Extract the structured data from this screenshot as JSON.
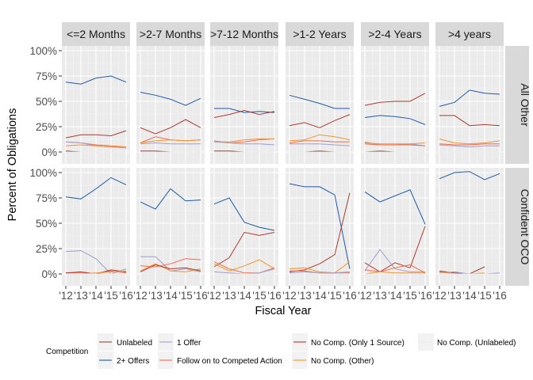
{
  "chart_data": {
    "type": "line",
    "xlabel": "Fiscal Year",
    "ylabel": "Percent of Obligations",
    "x": [
      "'12",
      "'13",
      "'14",
      "'15",
      "'16"
    ],
    "x_tick_labels": [
      "'12",
      "'13",
      "'14",
      "'15",
      "'16"
    ],
    "y_tick_labels": [
      "0%",
      "25%",
      "50%",
      "75%",
      "100%"
    ],
    "ylim": [
      0,
      1
    ],
    "grid": true,
    "legend_position": "bottom",
    "legend_title": "Competition",
    "columns": [
      "<=2 Months",
      ">2-7 Months",
      ">7-12 Months",
      ">1-2 Years",
      ">2-4 Years",
      ">4 years"
    ],
    "rows": [
      "All Other",
      "Confident OCO"
    ],
    "series_names": [
      "Unlabeled",
      "2+ Offers",
      "1 Offer",
      "Follow on to Competed Action",
      "No Comp. (Only 1 Source)",
      "No Comp. (Other)",
      "No Comp. (Unlabeled)"
    ],
    "colors": {
      "Unlabeled": "#8c4a3a",
      "2+ Offers": "#1f5aa6",
      "1 Offer": "#9f9fce",
      "Follow on to Competed Action": "#f26b4a",
      "No Comp. (Only 1 Source)": "#b03a2e",
      "No Comp. (Other)": "#f4932d",
      "No Comp. (Unlabeled)": "#f2ecec"
    },
    "panels": [
      {
        "row": "All Other",
        "col": "<=2 Months",
        "series": [
          {
            "name": "2+ Offers",
            "values": [
              0.69,
              0.67,
              0.73,
              0.75,
              0.69
            ]
          },
          {
            "name": "No Comp. (Only 1 Source)",
            "values": [
              0.14,
              0.17,
              0.17,
              0.16,
              0.21
            ]
          },
          {
            "name": "Follow on to Competed Action",
            "values": [
              0.1,
              0.09,
              0.07,
              0.06,
              0.05
            ]
          },
          {
            "name": "1 Offer",
            "values": [
              0.1,
              0.09,
              0.06,
              0.05,
              0.04
            ]
          },
          {
            "name": "No Comp. (Other)",
            "values": [
              0.06,
              0.07,
              0.06,
              0.05,
              0.05
            ]
          },
          {
            "name": "Unlabeled",
            "values": [
              0.01,
              0.0,
              0.0,
              0.0,
              0.0
            ]
          },
          {
            "name": "No Comp. (Unlabeled)",
            "values": [
              0.0,
              0.0,
              0.0,
              0.0,
              0.0
            ]
          }
        ]
      },
      {
        "row": "All Other",
        "col": ">2-7 Months",
        "series": [
          {
            "name": "2+ Offers",
            "values": [
              0.59,
              0.56,
              0.52,
              0.46,
              0.53
            ]
          },
          {
            "name": "No Comp. (Only 1 Source)",
            "values": [
              0.24,
              0.18,
              0.24,
              0.32,
              0.24
            ]
          },
          {
            "name": "Follow on to Competed Action",
            "values": [
              0.09,
              0.15,
              0.12,
              0.11,
              0.12
            ]
          },
          {
            "name": "No Comp. (Other)",
            "values": [
              0.09,
              0.11,
              0.12,
              0.11,
              0.12
            ]
          },
          {
            "name": "1 Offer",
            "values": [
              0.08,
              0.09,
              0.08,
              0.08,
              0.08
            ]
          },
          {
            "name": "Unlabeled",
            "values": [
              0.01,
              0.01,
              0.0,
              0.0,
              0.0
            ]
          },
          {
            "name": "No Comp. (Unlabeled)",
            "values": [
              0.0,
              0.0,
              0.0,
              0.0,
              0.0
            ]
          }
        ]
      },
      {
        "row": "All Other",
        "col": ">7-12 Months",
        "series": [
          {
            "name": "2+ Offers",
            "values": [
              0.43,
              0.43,
              0.39,
              0.4,
              0.39
            ]
          },
          {
            "name": "No Comp. (Only 1 Source)",
            "values": [
              0.34,
              0.37,
              0.41,
              0.37,
              0.4
            ]
          },
          {
            "name": "Follow on to Competed Action",
            "values": [
              0.11,
              0.09,
              0.1,
              0.12,
              0.13
            ]
          },
          {
            "name": "No Comp. (Other)",
            "values": [
              0.1,
              0.1,
              0.12,
              0.13,
              0.13
            ]
          },
          {
            "name": "1 Offer",
            "values": [
              0.1,
              0.09,
              0.08,
              0.08,
              0.07
            ]
          },
          {
            "name": "Unlabeled",
            "values": [
              0.01,
              0.01,
              0.0,
              0.0,
              0.0
            ]
          },
          {
            "name": "No Comp. (Unlabeled)",
            "values": [
              0.0,
              0.0,
              0.0,
              0.0,
              0.0
            ]
          }
        ]
      },
      {
        "row": "All Other",
        "col": ">1-2 Years",
        "series": [
          {
            "name": "2+ Offers",
            "values": [
              0.56,
              0.52,
              0.48,
              0.43,
              0.43
            ]
          },
          {
            "name": "No Comp. (Only 1 Source)",
            "values": [
              0.26,
              0.29,
              0.24,
              0.31,
              0.37
            ]
          },
          {
            "name": "No Comp. (Other)",
            "values": [
              0.11,
              0.12,
              0.17,
              0.15,
              0.12
            ]
          },
          {
            "name": "Follow on to Competed Action",
            "values": [
              0.09,
              0.11,
              0.11,
              0.1,
              0.1
            ]
          },
          {
            "name": "1 Offer",
            "values": [
              0.08,
              0.08,
              0.08,
              0.07,
              0.06
            ]
          },
          {
            "name": "Unlabeled",
            "values": [
              0.0,
              0.0,
              0.01,
              0.0,
              0.0
            ]
          },
          {
            "name": "No Comp. (Unlabeled)",
            "values": [
              0.0,
              0.0,
              0.0,
              0.0,
              0.0
            ]
          }
        ]
      },
      {
        "row": "All Other",
        "col": ">2-4 Years",
        "series": [
          {
            "name": "No Comp. (Only 1 Source)",
            "values": [
              0.46,
              0.49,
              0.5,
              0.5,
              0.58
            ]
          },
          {
            "name": "2+ Offers",
            "values": [
              0.34,
              0.36,
              0.35,
              0.33,
              0.27
            ]
          },
          {
            "name": "1 Offer",
            "values": [
              0.1,
              0.07,
              0.07,
              0.08,
              0.06
            ]
          },
          {
            "name": "Follow on to Competed Action",
            "values": [
              0.08,
              0.07,
              0.07,
              0.07,
              0.06
            ]
          },
          {
            "name": "No Comp. (Other)",
            "values": [
              0.09,
              0.08,
              0.08,
              0.08,
              0.09
            ]
          },
          {
            "name": "Unlabeled",
            "values": [
              0.0,
              0.01,
              0.0,
              0.0,
              0.0
            ]
          },
          {
            "name": "No Comp. (Unlabeled)",
            "values": [
              0.0,
              0.0,
              0.0,
              0.0,
              0.0
            ]
          }
        ]
      },
      {
        "row": "All Other",
        "col": ">4 years",
        "series": [
          {
            "name": "2+ Offers",
            "values": [
              0.45,
              0.49,
              0.61,
              0.58,
              0.57
            ]
          },
          {
            "name": "No Comp. (Only 1 Source)",
            "values": [
              0.36,
              0.36,
              0.26,
              0.27,
              0.26
            ]
          },
          {
            "name": "No Comp. (Other)",
            "values": [
              0.13,
              0.09,
              0.08,
              0.09,
              0.11
            ]
          },
          {
            "name": "1 Offer",
            "values": [
              0.07,
              0.06,
              0.05,
              0.06,
              0.06
            ]
          },
          {
            "name": "Follow on to Competed Action",
            "values": [
              0.08,
              0.07,
              0.07,
              0.08,
              0.08
            ]
          },
          {
            "name": "Unlabeled",
            "values": [
              0.0,
              0.0,
              0.0,
              0.0,
              0.0
            ]
          },
          {
            "name": "No Comp. (Unlabeled)",
            "values": [
              0.0,
              0.0,
              0.0,
              0.0,
              0.0
            ]
          }
        ]
      },
      {
        "row": "Confident OCO",
        "col": "<=2 Months",
        "series": [
          {
            "name": "2+ Offers",
            "values": [
              0.76,
              0.74,
              0.84,
              0.95,
              0.88
            ]
          },
          {
            "name": "1 Offer",
            "values": [
              0.22,
              0.23,
              0.15,
              0.0,
              0.05
            ]
          },
          {
            "name": "Follow on to Competed Action",
            "values": [
              0.01,
              0.01,
              0.0,
              0.03,
              0.01
            ]
          },
          {
            "name": "No Comp. (Only 1 Source)",
            "values": [
              0.01,
              0.02,
              0.0,
              0.04,
              0.02
            ]
          },
          {
            "name": "No Comp. (Other)",
            "values": [
              0.0,
              0.0,
              0.01,
              0.02,
              0.03
            ]
          },
          {
            "name": "Unlabeled",
            "values": [
              0.0,
              0.0,
              0.0,
              0.0,
              0.0
            ]
          },
          {
            "name": "No Comp. (Unlabeled)",
            "values": [
              0.0,
              0.0,
              0.0,
              0.0,
              0.0
            ]
          }
        ]
      },
      {
        "row": "Confident OCO",
        "col": ">2-7 Months",
        "series": [
          {
            "name": "2+ Offers",
            "values": [
              0.71,
              0.64,
              0.84,
              0.72,
              0.73
            ]
          },
          {
            "name": "1 Offer",
            "values": [
              0.17,
              0.17,
              0.03,
              0.05,
              0.02
            ]
          },
          {
            "name": "Follow on to Competed Action",
            "values": [
              0.08,
              0.07,
              0.1,
              0.15,
              0.14
            ]
          },
          {
            "name": "No Comp. (Other)",
            "values": [
              0.03,
              0.1,
              0.03,
              0.02,
              0.05
            ]
          },
          {
            "name": "No Comp. (Only 1 Source)",
            "values": [
              0.02,
              0.09,
              0.05,
              0.06,
              0.03
            ]
          },
          {
            "name": "Unlabeled",
            "values": [
              0.0,
              0.0,
              0.0,
              0.0,
              0.0
            ]
          },
          {
            "name": "No Comp. (Unlabeled)",
            "values": [
              0.0,
              0.0,
              0.0,
              0.0,
              0.0
            ]
          }
        ]
      },
      {
        "row": "Confident OCO",
        "col": ">7-12 Months",
        "series": [
          {
            "name": "2+ Offers",
            "values": [
              0.69,
              0.75,
              0.51,
              0.46,
              0.43
            ]
          },
          {
            "name": "No Comp. (Only 1 Source)",
            "values": [
              0.07,
              0.16,
              0.41,
              0.38,
              0.41
            ]
          },
          {
            "name": "No Comp. (Other)",
            "values": [
              0.1,
              0.03,
              0.08,
              0.14,
              0.05
            ]
          },
          {
            "name": "Follow on to Competed Action",
            "values": [
              0.12,
              0.05,
              0.01,
              0.01,
              0.06
            ]
          },
          {
            "name": "1 Offer",
            "values": [
              0.02,
              0.01,
              0.0,
              0.01,
              0.05
            ]
          },
          {
            "name": "Unlabeled",
            "values": [
              0.0,
              0.0,
              0.0,
              0.0,
              0.0
            ]
          },
          {
            "name": "No Comp. (Unlabeled)",
            "values": [
              0.0,
              0.0,
              0.0,
              0.0,
              0.0
            ]
          }
        ]
      },
      {
        "row": "Confident OCO",
        "col": ">1-2 Years",
        "series": [
          {
            "name": "2+ Offers",
            "values": [
              0.89,
              0.86,
              0.86,
              0.78,
              0.05
            ]
          },
          {
            "name": "No Comp. (Only 1 Source)",
            "values": [
              0.02,
              0.04,
              0.1,
              0.19,
              0.8
            ]
          },
          {
            "name": "No Comp. (Other)",
            "values": [
              0.05,
              0.06,
              0.02,
              0.01,
              0.12
            ]
          },
          {
            "name": "Follow on to Competed Action",
            "values": [
              0.03,
              0.03,
              0.01,
              0.01,
              0.01
            ]
          },
          {
            "name": "1 Offer",
            "values": [
              0.01,
              0.02,
              0.01,
              0.01,
              0.02
            ]
          },
          {
            "name": "Unlabeled",
            "values": [
              0.0,
              0.0,
              0.0,
              0.0,
              0.0
            ]
          },
          {
            "name": "No Comp. (Unlabeled)",
            "values": [
              0.0,
              0.0,
              0.0,
              0.0,
              0.0
            ]
          }
        ]
      },
      {
        "row": "Confident OCO",
        "col": ">2-4 Years",
        "series": [
          {
            "name": "2+ Offers",
            "values": [
              0.81,
              0.71,
              0.77,
              0.83,
              0.49
            ]
          },
          {
            "name": "No Comp. (Only 1 Source)",
            "values": [
              0.11,
              0.02,
              0.11,
              0.06,
              0.47
            ]
          },
          {
            "name": "1 Offer",
            "values": [
              0.03,
              0.24,
              0.05,
              0.02,
              0.02
            ]
          },
          {
            "name": "Follow on to Competed Action",
            "values": [
              0.04,
              0.02,
              0.06,
              0.09,
              0.01
            ]
          },
          {
            "name": "No Comp. (Other)",
            "values": [
              0.0,
              0.02,
              0.01,
              0.01,
              0.01
            ]
          },
          {
            "name": "Unlabeled",
            "values": [
              0.0,
              0.0,
              0.0,
              0.0,
              0.0
            ]
          },
          {
            "name": "No Comp. (Unlabeled)",
            "values": [
              0.0,
              0.0,
              0.0,
              0.0,
              0.0
            ]
          }
        ]
      },
      {
        "row": "Confident OCO",
        "col": ">4 years",
        "series": [
          {
            "name": "2+ Offers",
            "values": [
              0.94,
              1.0,
              1.01,
              0.93,
              0.99
            ]
          },
          {
            "name": "No Comp. (Only 1 Source)",
            "values": [
              0.03,
              0.01,
              0.0,
              0.07,
              null
            ]
          },
          {
            "name": "1 Offer",
            "values": [
              0.01,
              0.02,
              0.0,
              0.0,
              0.01
            ]
          },
          {
            "name": "No Comp. (Other)",
            "values": [
              0.02,
              0.0,
              0.0,
              0.01,
              null
            ]
          },
          {
            "name": "Unlabeled",
            "values": [
              0.0,
              0.0,
              0.0,
              0.0,
              0.0
            ]
          },
          {
            "name": "No Comp. (Unlabeled)",
            "values": [
              0.0,
              0.0,
              0.0,
              0.0,
              0.0
            ]
          }
        ]
      }
    ]
  }
}
